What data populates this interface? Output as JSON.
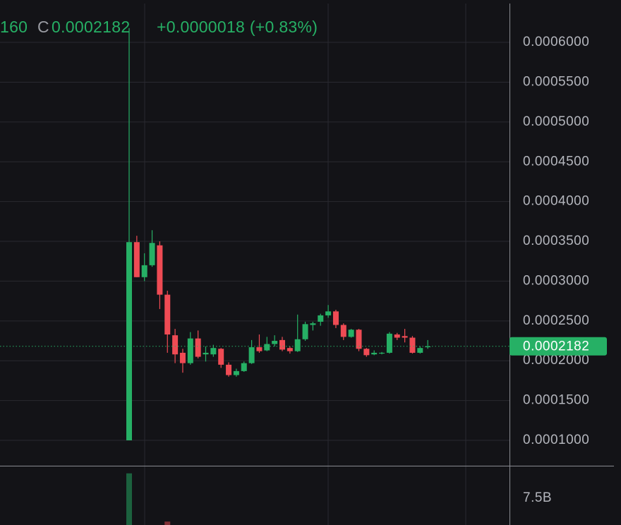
{
  "chart_data": {
    "type": "candlestick",
    "header": {
      "partial": "160",
      "close_prefix": "C",
      "close": "0.0002182",
      "change": "+0.0000018 (+0.83%)"
    },
    "up_color": "#26b065",
    "down_color": "#ef4b54",
    "open": [
      0.0001,
      0.000349,
      0.000305,
      0.00032,
      0.000345,
      0.000283,
      0.000232,
      0.00021,
      0.000197,
      0.000228,
      0.000208,
      0.000208,
      0.000215,
      0.000195,
      0.000182,
      0.000187,
      0.000197,
      0.000217,
      0.000213,
      0.000221,
      0.000226,
      0.000216,
      0.000212,
      0.000227,
      0.000245,
      0.000249,
      0.000257,
      0.000262,
      0.000245,
      0.00023,
      0.000239,
      0.000215,
      0.000208,
      0.000209,
      0.00021,
      0.000233,
      0.000231,
      0.000229,
      0.00021,
      0.000217
    ],
    "high": [
      0.000618,
      0.000357,
      0.000335,
      0.000364,
      0.00035,
      0.000288,
      0.00024,
      0.000215,
      0.000236,
      0.000238,
      0.000218,
      0.00022,
      0.000216,
      0.000198,
      0.00019,
      0.000199,
      0.000226,
      0.000233,
      0.00023,
      0.000232,
      0.00023,
      0.000218,
      0.000258,
      0.000249,
      0.000249,
      0.000259,
      0.00027,
      0.000264,
      0.000247,
      0.00024,
      0.00024,
      0.000216,
      0.000213,
      0.000211,
      0.000236,
      0.000235,
      0.00024,
      0.000231,
      0.000218,
      0.000226
    ],
    "low": [
      0.0001,
      0.000305,
      0.0003,
      0.000318,
      0.000265,
      0.00021,
      0.000197,
      0.000185,
      0.000195,
      0.000203,
      0.000199,
      0.000205,
      0.000191,
      0.00018,
      0.00018,
      0.000186,
      0.000196,
      0.00021,
      0.000212,
      0.000218,
      0.000212,
      0.000209,
      0.000211,
      0.000225,
      0.000238,
      0.000244,
      0.000254,
      0.000241,
      0.000226,
      0.000229,
      0.000212,
      0.000205,
      0.000207,
      0.000208,
      0.000209,
      0.000226,
      0.000223,
      0.000209,
      0.000209,
      0.000215
    ],
    "close": [
      0.000349,
      0.000305,
      0.00032,
      0.000348,
      0.000283,
      0.000233,
      0.000208,
      0.000197,
      0.000228,
      0.000205,
      0.00021,
      0.000216,
      0.000195,
      0.000182,
      0.000187,
      0.000197,
      0.000217,
      0.000212,
      0.000221,
      0.000225,
      0.000214,
      0.000212,
      0.000227,
      0.000246,
      0.000247,
      0.000257,
      0.000262,
      0.000245,
      0.00023,
      0.000239,
      0.000215,
      0.000207,
      0.00021,
      0.00021,
      0.000234,
      0.000229,
      0.000229,
      0.00021,
      0.000216,
      0.000218
    ],
    "ylim": [
      6.81e-05,
      0.0006488
    ],
    "yticks": [
      {
        "value": 0.0001,
        "label": "0.0001000"
      },
      {
        "value": 0.00015,
        "label": "0.0001500"
      },
      {
        "value": 0.0002,
        "label": "0.0002000"
      },
      {
        "value": 0.00025,
        "label": "0.0002500"
      },
      {
        "value": 0.0003,
        "label": "0.0003000"
      },
      {
        "value": 0.00035,
        "label": "0.0003500"
      },
      {
        "value": 0.0004,
        "label": "0.0004000"
      },
      {
        "value": 0.00045,
        "label": "0.0004500"
      },
      {
        "value": 0.0005,
        "label": "0.0005000"
      },
      {
        "value": 0.00055,
        "label": "0.0005500"
      },
      {
        "value": 0.0006,
        "label": "0.0006000"
      }
    ],
    "last_price": {
      "value": 0.0002182,
      "label": "0.0002182"
    },
    "volume": {
      "values": [
        12400000000,
        null,
        null,
        null,
        null,
        2900000000,
        null,
        null,
        null,
        null,
        null,
        null,
        null,
        null,
        null,
        null,
        null,
        null,
        null,
        null,
        null,
        null,
        null,
        null,
        null,
        null,
        null,
        null,
        null,
        null,
        null,
        null,
        null,
        null,
        null,
        null,
        null,
        null,
        null,
        null
      ],
      "colors": [
        "#26b065",
        null,
        null,
        null,
        null,
        "#ef4b54",
        null,
        null,
        null,
        null,
        null,
        null,
        null,
        null,
        null,
        null,
        null,
        null,
        null,
        null,
        null,
        null,
        null,
        null,
        null,
        null,
        null,
        null,
        null,
        null,
        null,
        null,
        null,
        null,
        null,
        null,
        null,
        null,
        null,
        null
      ],
      "ylim": [
        2220000000,
        13900000000
      ],
      "yticks": [
        {
          "value": 7500000000,
          "label": "7.5B"
        }
      ]
    },
    "grid": true
  }
}
